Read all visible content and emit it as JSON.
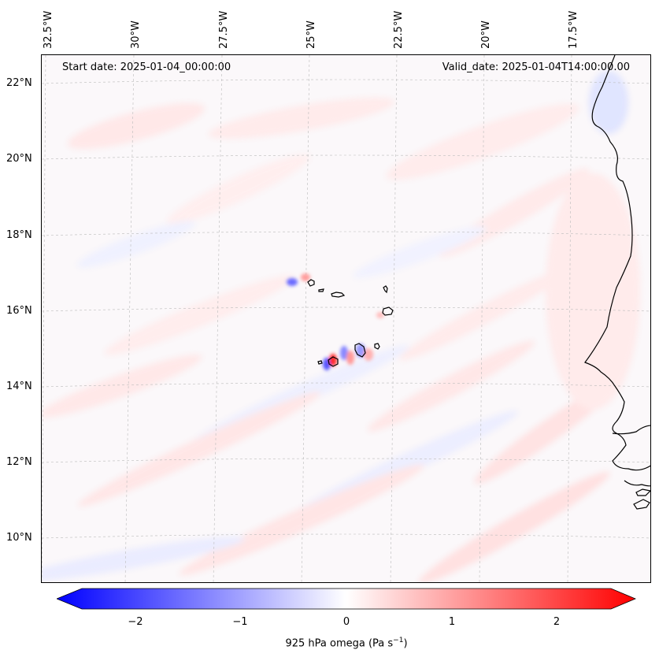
{
  "header": {
    "start_date": "Start date: 2025-01-04_00:00:00",
    "valid_date": "Valid_date: 2025-01-04T14:00:00.00"
  },
  "lon_labels": [
    "32.5°W",
    "30°W",
    "27.5°W",
    "25°W",
    "22.5°W",
    "20°W",
    "17.5°W"
  ],
  "lat_labels": [
    "22°N",
    "20°N",
    "18°N",
    "16°N",
    "14°N",
    "12°N",
    "10°N"
  ],
  "colorbar": {
    "label_main": "925 hPa omega (Pa s",
    "label_exp": "−1",
    "label_close": ")",
    "ticks": [
      "−2",
      "−1",
      "0",
      "1",
      "2"
    ],
    "range": [
      -2.6,
      2.6
    ],
    "colors": {
      "negative": "#0000ff",
      "zero": "#ffffff",
      "positive": "#ff0000"
    }
  },
  "map": {
    "variable": "925 hPa omega",
    "extent_lon": [
      -33,
      -16.5
    ],
    "extent_lat": [
      9,
      22.8
    ]
  }
}
